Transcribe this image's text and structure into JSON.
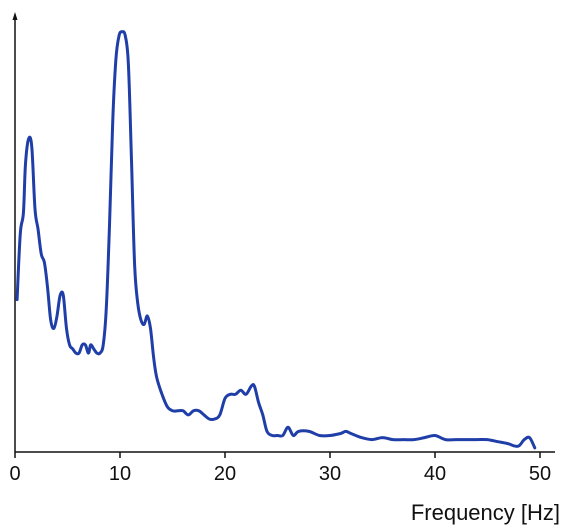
{
  "chart_data": {
    "type": "line",
    "title": "",
    "xlabel": "Frequency [Hz]",
    "ylabel": "",
    "xlim": [
      0,
      50
    ],
    "ylim": [
      0,
      100
    ],
    "grid": false,
    "legend": "none",
    "xticks": [
      0,
      10,
      20,
      30,
      40,
      50
    ],
    "xtick_labels": [
      "0",
      "10",
      "20",
      "30",
      "40",
      "50"
    ],
    "yticks_shown": false,
    "series": [
      {
        "color": "#1f3ea8",
        "x": [
          0.2,
          0.5,
          0.8,
          1.0,
          1.3,
          1.6,
          1.9,
          2.2,
          2.5,
          2.8,
          3.1,
          3.4,
          3.7,
          4.0,
          4.3,
          4.6,
          4.9,
          5.2,
          5.5,
          5.8,
          6.1,
          6.4,
          6.7,
          7.0,
          7.2,
          7.5,
          7.8,
          8.1,
          8.4,
          8.7,
          9.0,
          9.3,
          9.6,
          9.9,
          10.2,
          10.5,
          10.8,
          11.1,
          11.4,
          11.7,
          12.0,
          12.3,
          12.6,
          12.9,
          13.2,
          13.5,
          14.0,
          14.5,
          15.0,
          15.5,
          16.0,
          16.5,
          17.0,
          17.5,
          18.0,
          18.5,
          19.0,
          19.5,
          20.0,
          20.5,
          21.0,
          21.5,
          22.0,
          22.5,
          22.8,
          23.2,
          23.6,
          24.0,
          24.5,
          25.0,
          25.5,
          26.0,
          26.5,
          27.0,
          28.0,
          29.0,
          30.0,
          31.0,
          31.5,
          32.0,
          33.0,
          34.0,
          35.0,
          36.0,
          37.0,
          38.0,
          39.0,
          40.0,
          41.0,
          42.0,
          43.0,
          44.0,
          45.0,
          46.0,
          47.0,
          47.5,
          48.0,
          48.5,
          49.0,
          49.5
        ],
        "y": [
          37,
          53,
          58,
          70,
          76,
          74,
          59,
          54,
          48,
          46,
          40,
          32,
          30,
          33,
          38,
          38,
          30,
          26,
          25,
          24,
          24,
          26,
          26,
          24,
          26,
          25,
          24,
          24,
          26,
          35,
          55,
          80,
          95,
          101,
          102,
          101,
          94,
          70,
          45,
          36,
          32,
          31,
          33,
          30,
          23,
          18,
          14,
          11,
          10,
          10,
          10,
          9,
          10,
          10,
          9,
          8,
          8,
          9,
          13,
          14,
          14,
          15,
          14,
          16,
          16,
          12,
          9,
          5,
          4,
          4,
          4,
          6,
          4,
          5,
          5,
          4,
          4,
          4.5,
          5,
          4.5,
          3.5,
          3,
          3.5,
          3,
          3,
          3,
          3.5,
          4,
          3,
          3,
          3,
          3,
          3,
          2.5,
          2,
          1.5,
          1.5,
          3,
          3.5,
          1
        ]
      }
    ]
  }
}
